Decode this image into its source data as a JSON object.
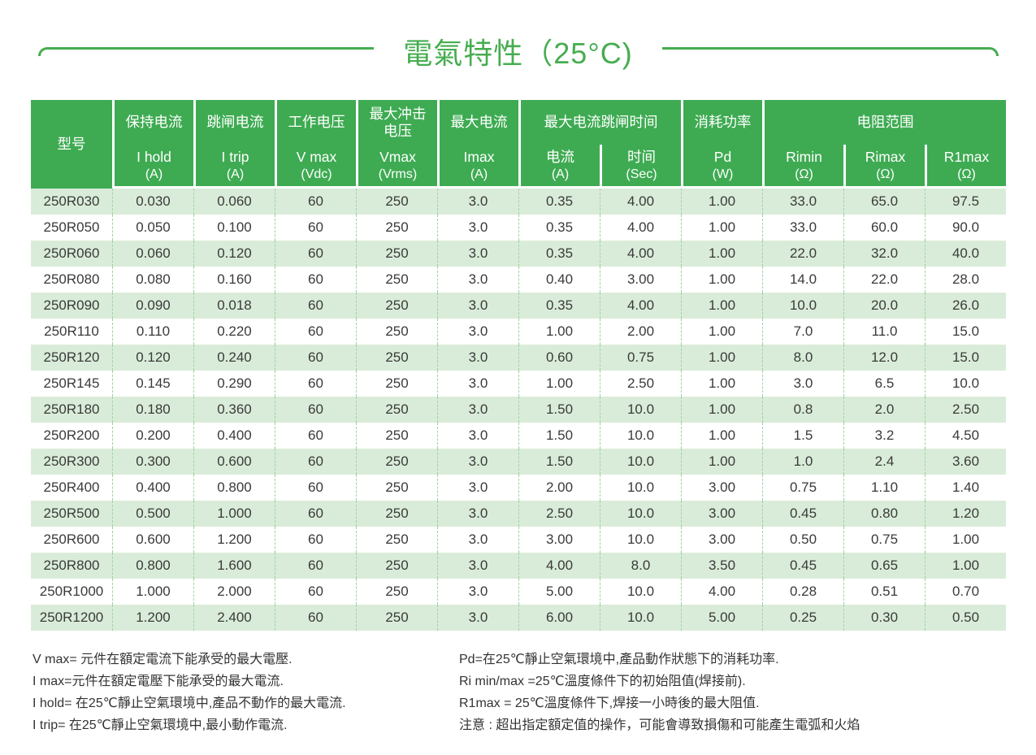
{
  "page": {
    "title": "電氣特性（25°C)"
  },
  "colors": {
    "header_green": "#3eab52",
    "title_green": "#46ad50",
    "row_stripe_green": "#d9ecd9",
    "dash_green": "#9ed3a1",
    "body_text": "#3a3a3a"
  },
  "table": {
    "header": {
      "model_label": "型号",
      "hold": {
        "cn": "保持电流",
        "sym": "I hold",
        "unit": "(A)"
      },
      "trip": {
        "cn": "跳闸电流",
        "sym": "I trip",
        "unit": "(A)"
      },
      "vmax": {
        "cn": "工作电压",
        "sym": "V max",
        "unit": "(Vdc)"
      },
      "surge": {
        "cn_line1": "最大冲击",
        "cn_line2": "电压",
        "sym": "Vmax",
        "unit": "(Vrms)"
      },
      "imax": {
        "cn": "最大电流",
        "sym": "Imax",
        "unit": "(A)"
      },
      "trip_time": {
        "cn": "最大电流跳闸时间",
        "current": {
          "sym": "电流",
          "unit": "(A)"
        },
        "time": {
          "sym": "时间",
          "unit": "(Sec)"
        }
      },
      "pd": {
        "cn": "消耗功率",
        "sym": "Pd",
        "unit": "(W)"
      },
      "resistance": {
        "cn": "电阻范围",
        "rimin": {
          "sym": "Rimin",
          "unit": "(Ω)"
        },
        "rimax": {
          "sym": "Rimax",
          "unit": "(Ω)"
        },
        "r1max": {
          "sym": "R1max",
          "unit": "(Ω)"
        }
      }
    },
    "rows": [
      [
        "250R030",
        "0.030",
        "0.060",
        "60",
        "250",
        "3.0",
        "0.35",
        "4.00",
        "1.00",
        "33.0",
        "65.0",
        "97.5"
      ],
      [
        "250R050",
        "0.050",
        "0.100",
        "60",
        "250",
        "3.0",
        "0.35",
        "4.00",
        "1.00",
        "33.0",
        "60.0",
        "90.0"
      ],
      [
        "250R060",
        "0.060",
        "0.120",
        "60",
        "250",
        "3.0",
        "0.35",
        "4.00",
        "1.00",
        "22.0",
        "32.0",
        "40.0"
      ],
      [
        "250R080",
        "0.080",
        "0.160",
        "60",
        "250",
        "3.0",
        "0.40",
        "3.00",
        "1.00",
        "14.0",
        "22.0",
        "28.0"
      ],
      [
        "250R090",
        "0.090",
        "0.018",
        "60",
        "250",
        "3.0",
        "0.35",
        "4.00",
        "1.00",
        "10.0",
        "20.0",
        "26.0"
      ],
      [
        "250R110",
        "0.110",
        "0.220",
        "60",
        "250",
        "3.0",
        "1.00",
        "2.00",
        "1.00",
        "7.0",
        "11.0",
        "15.0"
      ],
      [
        "250R120",
        "0.120",
        "0.240",
        "60",
        "250",
        "3.0",
        "0.60",
        "0.75",
        "1.00",
        "8.0",
        "12.0",
        "15.0"
      ],
      [
        "250R145",
        "0.145",
        "0.290",
        "60",
        "250",
        "3.0",
        "1.00",
        "2.50",
        "1.00",
        "3.0",
        "6.5",
        "10.0"
      ],
      [
        "250R180",
        "0.180",
        "0.360",
        "60",
        "250",
        "3.0",
        "1.50",
        "10.0",
        "1.00",
        "0.8",
        "2.0",
        "2.50"
      ],
      [
        "250R200",
        "0.200",
        "0.400",
        "60",
        "250",
        "3.0",
        "1.50",
        "10.0",
        "1.00",
        "1.5",
        "3.2",
        "4.50"
      ],
      [
        "250R300",
        "0.300",
        "0.600",
        "60",
        "250",
        "3.0",
        "1.50",
        "10.0",
        "1.00",
        "1.0",
        "2.4",
        "3.60"
      ],
      [
        "250R400",
        "0.400",
        "0.800",
        "60",
        "250",
        "3.0",
        "2.00",
        "10.0",
        "3.00",
        "0.75",
        "1.10",
        "1.40"
      ],
      [
        "250R500",
        "0.500",
        "1.000",
        "60",
        "250",
        "3.0",
        "2.50",
        "10.0",
        "3.00",
        "0.45",
        "0.80",
        "1.20"
      ],
      [
        "250R600",
        "0.600",
        "1.200",
        "60",
        "250",
        "3.0",
        "3.00",
        "10.0",
        "3.00",
        "0.50",
        "0.75",
        "1.00"
      ],
      [
        "250R800",
        "0.800",
        "1.600",
        "60",
        "250",
        "3.0",
        "4.00",
        "8.0",
        "3.50",
        "0.45",
        "0.65",
        "1.00"
      ],
      [
        "250R1000",
        "1.000",
        "2.000",
        "60",
        "250",
        "3.0",
        "5.00",
        "10.0",
        "4.00",
        "0.28",
        "0.51",
        "0.70"
      ],
      [
        "250R1200",
        "1.200",
        "2.400",
        "60",
        "250",
        "3.0",
        "6.00",
        "10.0",
        "5.00",
        "0.25",
        "0.30",
        "0.50"
      ]
    ]
  },
  "footnotes": {
    "left": [
      "V max= 元件在額定電流下能承受的最大電壓.",
      "I max=元件在額定電壓下能承受的最大電流.",
      "I hold= 在25℃靜止空氣環境中,產品不動作的最大電流.",
      "I trip= 在25℃靜止空氣環境中,最小動作電流."
    ],
    "right": [
      "Pd=在25℃靜止空氣環境中,產品動作狀態下的消耗功率.",
      "Ri min/max  =25℃溫度條件下的初始阻值(焊接前).",
      "R1max  = 25℃溫度條件下,焊接一小時後的最大阻值.",
      "注意 : 超出指定額定值的操作，可能會導致損傷和可能產生電弧和火焰"
    ]
  }
}
